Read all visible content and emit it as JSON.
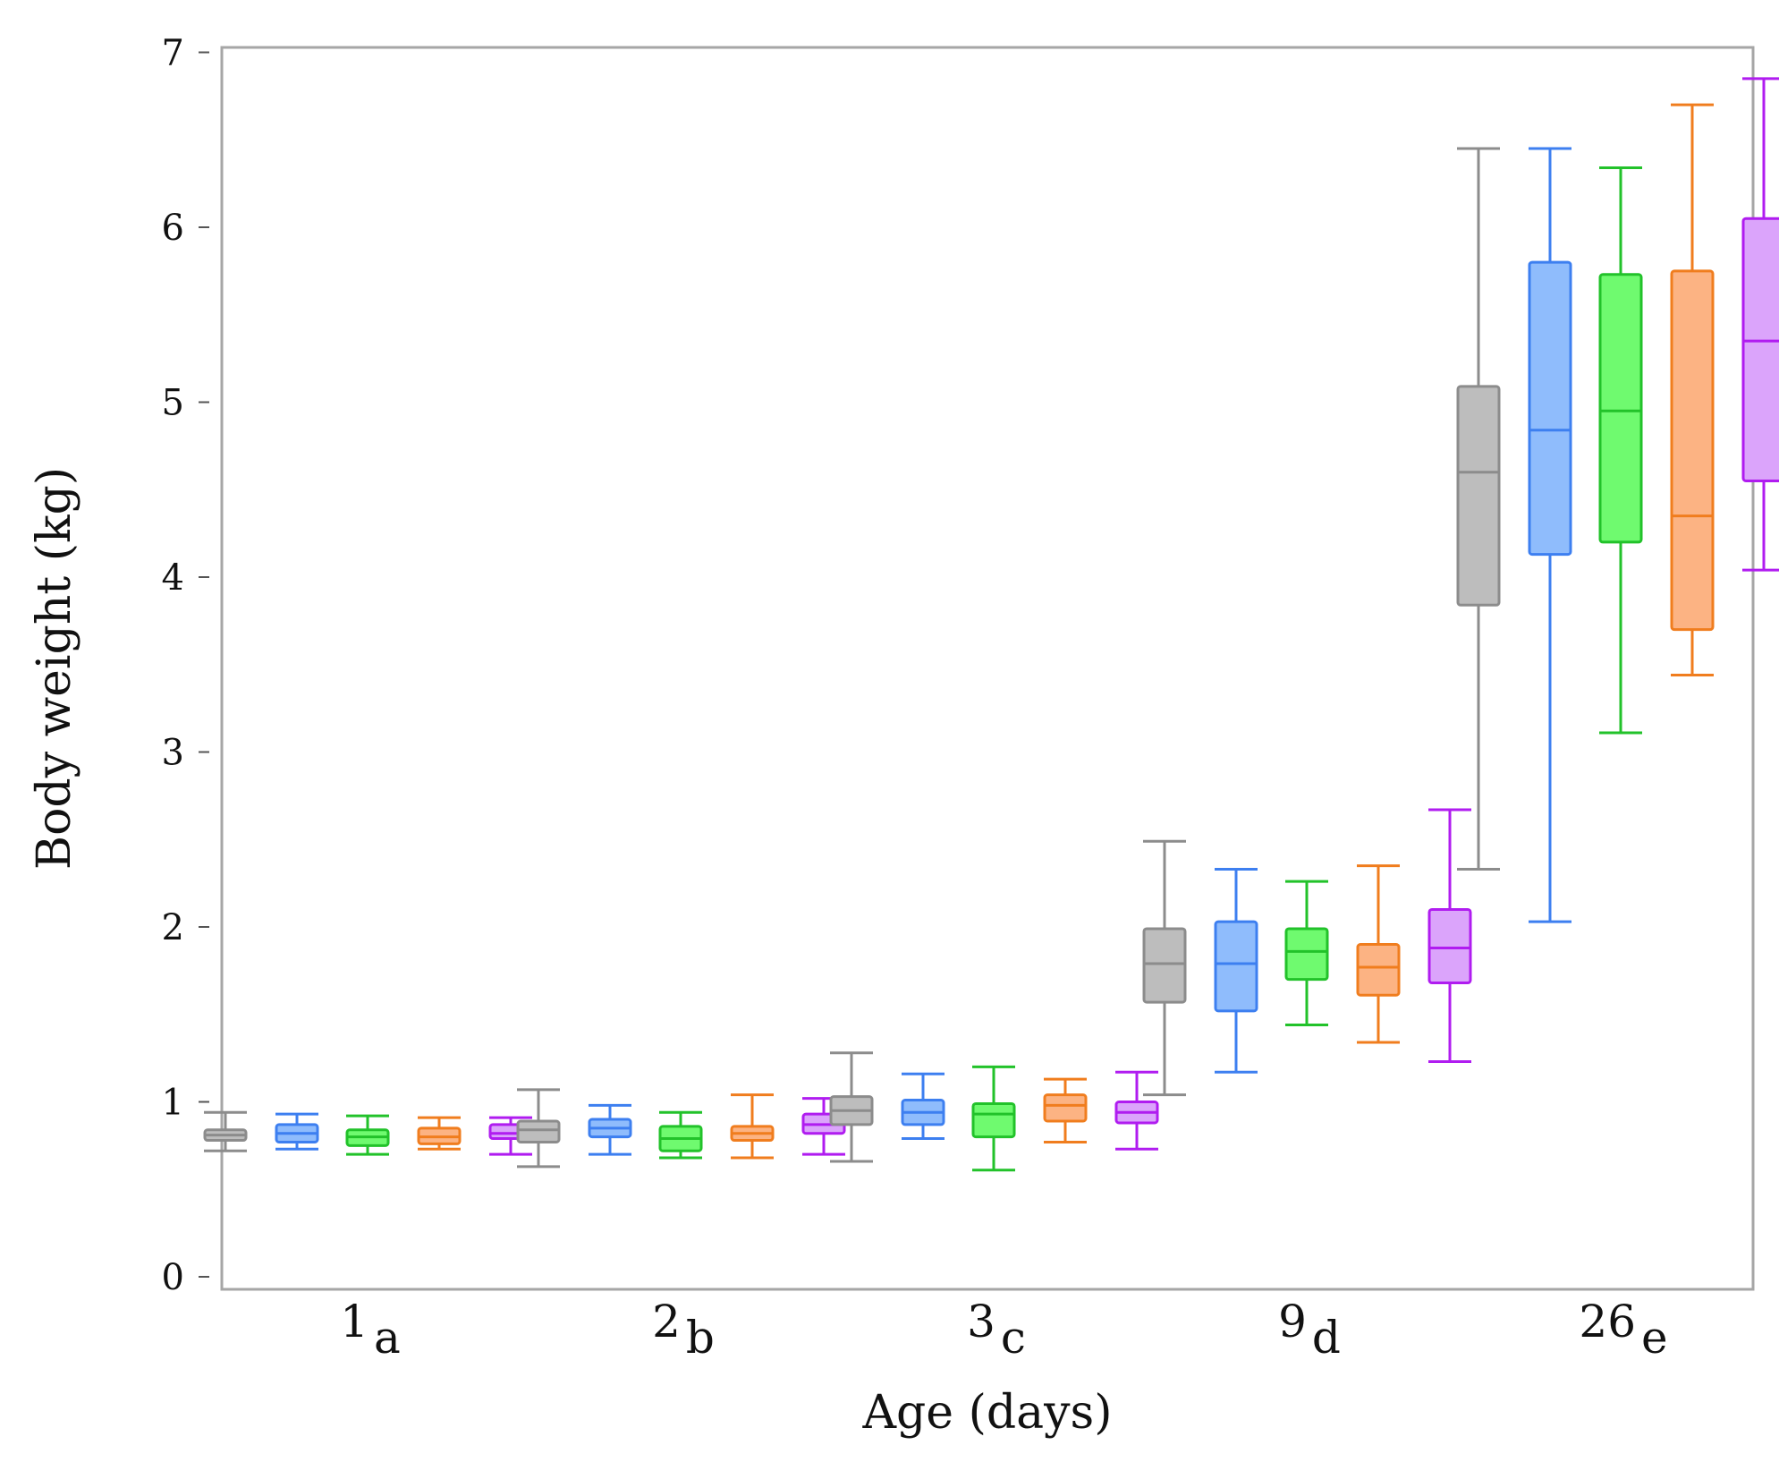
{
  "chart_data": {
    "type": "boxplot",
    "title": "",
    "xlabel": "Age (days)",
    "ylabel": "Body weight (kg)",
    "ylim": [
      0,
      7
    ],
    "yticks": [
      0,
      1,
      2,
      3,
      4,
      5,
      6,
      7
    ],
    "grid": false,
    "legend": "none",
    "categories": [
      {
        "label": "1",
        "letter": "a"
      },
      {
        "label": "2",
        "letter": "b"
      },
      {
        "label": "3",
        "letter": "c"
      },
      {
        "label": "9",
        "letter": "d"
      },
      {
        "label": "26",
        "letter": "e"
      }
    ],
    "series_colors": [
      {
        "stroke": "#8c8c8c",
        "fill": "#bdbdbd"
      },
      {
        "stroke": "#3d7ff0",
        "fill": "#8fbcfc"
      },
      {
        "stroke": "#22c22a",
        "fill": "#6ffa6f"
      },
      {
        "stroke": "#f07d1e",
        "fill": "#fcb383"
      },
      {
        "stroke": "#b01cf0",
        "fill": "#dba4fb"
      }
    ],
    "boxes": [
      [
        {
          "min": 0.72,
          "q1": 0.78,
          "median": 0.81,
          "q3": 0.84,
          "max": 0.94
        },
        {
          "min": 0.73,
          "q1": 0.77,
          "median": 0.82,
          "q3": 0.87,
          "max": 0.93
        },
        {
          "min": 0.7,
          "q1": 0.75,
          "median": 0.8,
          "q3": 0.84,
          "max": 0.92
        },
        {
          "min": 0.73,
          "q1": 0.76,
          "median": 0.8,
          "q3": 0.85,
          "max": 0.91
        },
        {
          "min": 0.7,
          "q1": 0.79,
          "median": 0.82,
          "q3": 0.87,
          "max": 0.91
        }
      ],
      [
        {
          "min": 0.63,
          "q1": 0.77,
          "median": 0.84,
          "q3": 0.89,
          "max": 1.07
        },
        {
          "min": 0.7,
          "q1": 0.8,
          "median": 0.85,
          "q3": 0.9,
          "max": 0.98
        },
        {
          "min": 0.68,
          "q1": 0.72,
          "median": 0.79,
          "q3": 0.86,
          "max": 0.94
        },
        {
          "min": 0.68,
          "q1": 0.78,
          "median": 0.82,
          "q3": 0.86,
          "max": 1.04
        },
        {
          "min": 0.7,
          "q1": 0.82,
          "median": 0.87,
          "q3": 0.93,
          "max": 1.02
        }
      ],
      [
        {
          "min": 0.66,
          "q1": 0.87,
          "median": 0.95,
          "q3": 1.03,
          "max": 1.28
        },
        {
          "min": 0.79,
          "q1": 0.87,
          "median": 0.94,
          "q3": 1.01,
          "max": 1.16
        },
        {
          "min": 0.61,
          "q1": 0.8,
          "median": 0.93,
          "q3": 0.99,
          "max": 1.2
        },
        {
          "min": 0.77,
          "q1": 0.89,
          "median": 0.98,
          "q3": 1.04,
          "max": 1.13
        },
        {
          "min": 0.73,
          "q1": 0.88,
          "median": 0.94,
          "q3": 1.0,
          "max": 1.17
        }
      ],
      [
        {
          "min": 1.04,
          "q1": 1.57,
          "median": 1.79,
          "q3": 1.99,
          "max": 2.49
        },
        {
          "min": 1.17,
          "q1": 1.52,
          "median": 1.79,
          "q3": 2.03,
          "max": 2.33
        },
        {
          "min": 1.44,
          "q1": 1.7,
          "median": 1.86,
          "q3": 1.99,
          "max": 2.26
        },
        {
          "min": 1.34,
          "q1": 1.61,
          "median": 1.77,
          "q3": 1.9,
          "max": 2.35
        },
        {
          "min": 1.23,
          "q1": 1.68,
          "median": 1.88,
          "q3": 2.1,
          "max": 2.67
        }
      ],
      [
        {
          "min": 2.33,
          "q1": 3.84,
          "median": 4.6,
          "q3": 5.09,
          "max": 6.45
        },
        {
          "min": 2.03,
          "q1": 4.13,
          "median": 4.84,
          "q3": 5.8,
          "max": 6.45
        },
        {
          "min": 3.11,
          "q1": 4.2,
          "median": 4.95,
          "q3": 5.73,
          "max": 6.34
        },
        {
          "min": 3.44,
          "q1": 3.7,
          "median": 4.35,
          "q3": 5.75,
          "max": 6.7
        },
        {
          "min": 4.04,
          "q1": 4.55,
          "median": 5.35,
          "q3": 6.05,
          "max": 6.85
        }
      ]
    ]
  }
}
